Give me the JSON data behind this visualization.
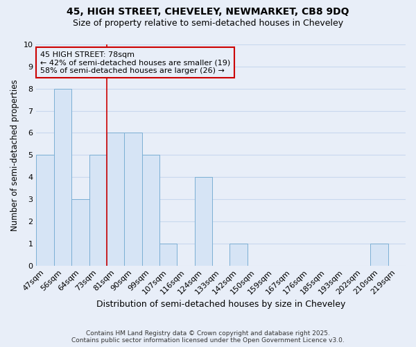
{
  "title_line1": "45, HIGH STREET, CHEVELEY, NEWMARKET, CB8 9DQ",
  "title_line2": "Size of property relative to semi-detached houses in Cheveley",
  "xlabel": "Distribution of semi-detached houses by size in Cheveley",
  "ylabel": "Number of semi-detached properties",
  "categories": [
    "47sqm",
    "56sqm",
    "64sqm",
    "73sqm",
    "81sqm",
    "90sqm",
    "99sqm",
    "107sqm",
    "116sqm",
    "124sqm",
    "133sqm",
    "142sqm",
    "150sqm",
    "159sqm",
    "167sqm",
    "176sqm",
    "185sqm",
    "193sqm",
    "202sqm",
    "210sqm",
    "219sqm"
  ],
  "values": [
    5,
    8,
    3,
    5,
    6,
    6,
    5,
    1,
    0,
    4,
    0,
    1,
    0,
    0,
    0,
    0,
    0,
    0,
    0,
    1,
    0
  ],
  "bar_color": "#d6e4f5",
  "bar_edgecolor": "#7bafd4",
  "vline_color": "#cc0000",
  "vline_x_index": 4,
  "annotation_title": "45 HIGH STREET: 78sqm",
  "annotation_line1": "← 42% of semi-detached houses are smaller (19)",
  "annotation_line2": "58% of semi-detached houses are larger (26) →",
  "annotation_box_edgecolor": "#cc0000",
  "ylim": [
    0,
    10
  ],
  "yticks": [
    0,
    1,
    2,
    3,
    4,
    5,
    6,
    7,
    8,
    9,
    10
  ],
  "footer_line1": "Contains HM Land Registry data © Crown copyright and database right 2025.",
  "footer_line2": "Contains public sector information licensed under the Open Government Licence v3.0.",
  "background_color": "#e8eef8",
  "plot_bg_color": "#e8eef8",
  "grid_color": "#c8d8ee",
  "title_fontsize": 10,
  "subtitle_fontsize": 9
}
